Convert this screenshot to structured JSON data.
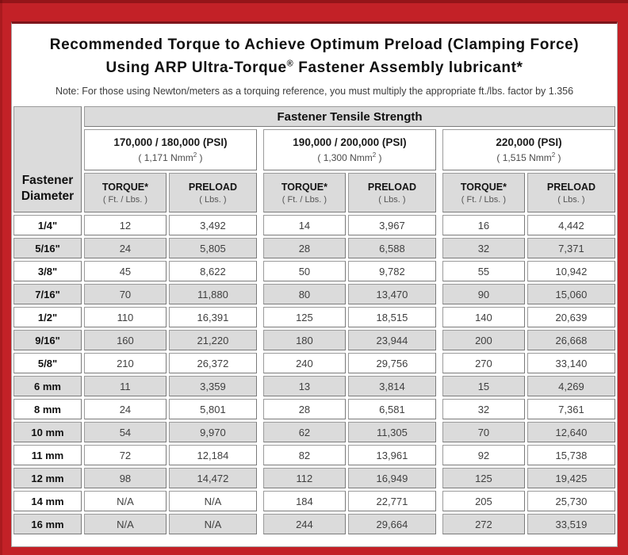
{
  "title": {
    "line1": "Recommended Torque to Achieve Optimum Preload (Clamping Force)",
    "line2_pre": "Using ARP Ultra-Torque",
    "line2_sup": "®",
    "line2_post": " Fastener Assembly lubricant*"
  },
  "note": "Note: For those using Newton/meters as a torquing reference, you must multiply the appropriate ft./lbs. factor by 1.356",
  "colors": {
    "frame_red": "#C32127",
    "frame_dark_line": "#7D161B",
    "header_gray": "#DBDBDB",
    "cell_border_gray": "#8A8A8A"
  },
  "table": {
    "corner": {
      "line1": "Fastener",
      "line2": "Diameter"
    },
    "tensile_header": "Fastener Tensile Strength",
    "groups": [
      {
        "psi": "170,000 / 180,000 (PSI)",
        "nmm_base": "( 1,171 Nmm",
        "nmm_sup": "2",
        "nmm_close": " )"
      },
      {
        "psi": "190,000 / 200,000 (PSI)",
        "nmm_base": "( 1,300 Nmm",
        "nmm_sup": "2",
        "nmm_close": " )"
      },
      {
        "psi": "220,000 (PSI)",
        "nmm_base": "( 1,515 Nmm",
        "nmm_sup": "2",
        "nmm_close": " )"
      }
    ],
    "col_headers": {
      "torque_label": "TORQUE*",
      "torque_unit": "( Ft. / Lbs. )",
      "preload_label": "PRELOAD",
      "preload_unit": "( Lbs. )"
    },
    "rows": [
      {
        "diameter": "1/4\"",
        "values": [
          "12",
          "3,492",
          "14",
          "3,967",
          "16",
          "4,442"
        ]
      },
      {
        "diameter": "5/16\"",
        "values": [
          "24",
          "5,805",
          "28",
          "6,588",
          "32",
          "7,371"
        ]
      },
      {
        "diameter": "3/8\"",
        "values": [
          "45",
          "8,622",
          "50",
          "9,782",
          "55",
          "10,942"
        ]
      },
      {
        "diameter": "7/16\"",
        "values": [
          "70",
          "11,880",
          "80",
          "13,470",
          "90",
          "15,060"
        ]
      },
      {
        "diameter": "1/2\"",
        "values": [
          "110",
          "16,391",
          "125",
          "18,515",
          "140",
          "20,639"
        ]
      },
      {
        "diameter": "9/16\"",
        "values": [
          "160",
          "21,220",
          "180",
          "23,944",
          "200",
          "26,668"
        ]
      },
      {
        "diameter": "5/8\"",
        "values": [
          "210",
          "26,372",
          "240",
          "29,756",
          "270",
          "33,140"
        ]
      },
      {
        "diameter": "6 mm",
        "values": [
          "11",
          "3,359",
          "13",
          "3,814",
          "15",
          "4,269"
        ]
      },
      {
        "diameter": "8 mm",
        "values": [
          "24",
          "5,801",
          "28",
          "6,581",
          "32",
          "7,361"
        ]
      },
      {
        "diameter": "10 mm",
        "values": [
          "54",
          "9,970",
          "62",
          "11,305",
          "70",
          "12,640"
        ]
      },
      {
        "diameter": "11 mm",
        "values": [
          "72",
          "12,184",
          "82",
          "13,961",
          "92",
          "15,738"
        ]
      },
      {
        "diameter": "12 mm",
        "values": [
          "98",
          "14,472",
          "112",
          "16,949",
          "125",
          "19,425"
        ]
      },
      {
        "diameter": "14 mm",
        "values": [
          "N/A",
          "N/A",
          "184",
          "22,771",
          "205",
          "25,730"
        ]
      },
      {
        "diameter": "16 mm",
        "values": [
          "N/A",
          "N/A",
          "244",
          "29,664",
          "272",
          "33,519"
        ]
      }
    ]
  }
}
